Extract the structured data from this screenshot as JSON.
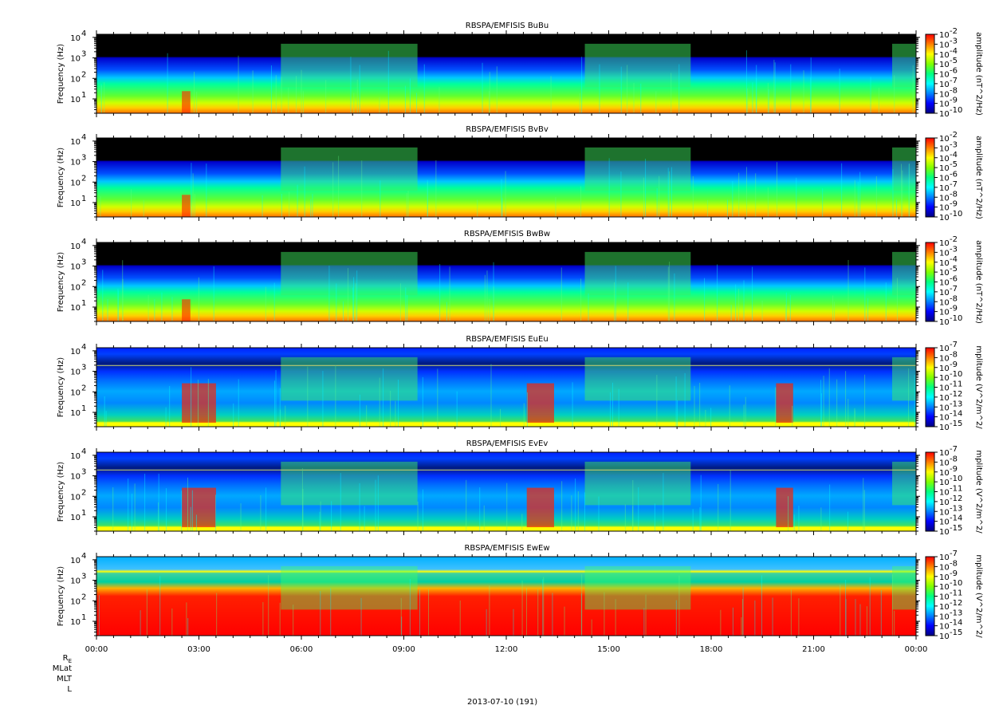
{
  "chart_data": [
    {
      "type": "heatmap",
      "title": "RBSPA/EMFISIS BuBu",
      "ylabel": "Frequency (Hz)",
      "y_scale": "log",
      "y_ticks": [
        "10",
        "10",
        "10",
        "10"
      ],
      "y_tick_exps": [
        "1",
        "2",
        "3",
        "4"
      ],
      "colorbar_label": "amplitude (nT^2/Hz)",
      "colorbar_exps": [
        "-2",
        "-3",
        "-4",
        "-5",
        "-6",
        "-7",
        "-8",
        "-9",
        "-10"
      ],
      "colorbar_scale": "log",
      "colorbar_range": [
        1e-10,
        0.01
      ]
    },
    {
      "type": "heatmap",
      "title": "RBSPA/EMFISIS BvBv",
      "ylabel": "Frequency (Hz)",
      "y_scale": "log",
      "y_ticks": [
        "10",
        "10",
        "10",
        "10"
      ],
      "y_tick_exps": [
        "1",
        "2",
        "3",
        "4"
      ],
      "colorbar_label": "amplitude (nT^2/Hz)",
      "colorbar_exps": [
        "-2",
        "-3",
        "-4",
        "-5",
        "-6",
        "-7",
        "-8",
        "-9",
        "-10"
      ],
      "colorbar_scale": "log",
      "colorbar_range": [
        1e-10,
        0.01
      ]
    },
    {
      "type": "heatmap",
      "title": "RBSPA/EMFISIS BwBw",
      "ylabel": "Frequency (Hz)",
      "y_scale": "log",
      "y_ticks": [
        "10",
        "10",
        "10",
        "10"
      ],
      "y_tick_exps": [
        "1",
        "2",
        "3",
        "4"
      ],
      "colorbar_label": "amplitude (nT^2/Hz)",
      "colorbar_exps": [
        "-2",
        "-3",
        "-4",
        "-5",
        "-6",
        "-7",
        "-8",
        "-9",
        "-10"
      ],
      "colorbar_scale": "log",
      "colorbar_range": [
        1e-10,
        0.01
      ]
    },
    {
      "type": "heatmap",
      "title": "RBSPA/EMFISIS EuEu",
      "ylabel": "Frequency (Hz)",
      "y_scale": "log",
      "y_ticks": [
        "10",
        "10",
        "10",
        "10"
      ],
      "y_tick_exps": [
        "1",
        "2",
        "3",
        "4"
      ],
      "colorbar_label": "mplitude (V^2/m^2/",
      "colorbar_exps": [
        "-7",
        "-8",
        "-9",
        "-10",
        "-11",
        "-12",
        "-13",
        "-14",
        "-15"
      ],
      "colorbar_scale": "log",
      "colorbar_range": [
        1e-15,
        1e-07
      ]
    },
    {
      "type": "heatmap",
      "title": "RBSPA/EMFISIS EvEv",
      "ylabel": "Frequency (Hz)",
      "y_scale": "log",
      "y_ticks": [
        "10",
        "10",
        "10",
        "10"
      ],
      "y_tick_exps": [
        "1",
        "2",
        "3",
        "4"
      ],
      "colorbar_label": "mplitude (V^2/m^2/",
      "colorbar_exps": [
        "-7",
        "-8",
        "-9",
        "-10",
        "-11",
        "-12",
        "-13",
        "-14",
        "-15"
      ],
      "colorbar_scale": "log",
      "colorbar_range": [
        1e-15,
        1e-07
      ]
    },
    {
      "type": "heatmap",
      "title": "RBSPA/EMFISIS EwEw",
      "ylabel": "Frequency (Hz)",
      "y_scale": "log",
      "y_ticks": [
        "10",
        "10",
        "10",
        "10"
      ],
      "y_tick_exps": [
        "1",
        "2",
        "3",
        "4"
      ],
      "colorbar_label": "mplitude (V^2/m^2/",
      "colorbar_exps": [
        "-7",
        "-8",
        "-9",
        "-10",
        "-11",
        "-12",
        "-13",
        "-14",
        "-15"
      ],
      "colorbar_scale": "log",
      "colorbar_range": [
        1e-15,
        1e-07
      ]
    }
  ],
  "x_axis": {
    "ticks": [
      "00:00",
      "03:00",
      "06:00",
      "09:00",
      "12:00",
      "15:00",
      "18:00",
      "21:00",
      "00:00"
    ],
    "range_hours": [
      0,
      24
    ]
  },
  "ephemeris_labels": [
    "R",
    "MLat",
    "MLT",
    "L"
  ],
  "ephemeris_subscript": "E",
  "date_label": "2013-07-10 (191)",
  "colorscale": [
    "#000080",
    "#0000ff",
    "#0080ff",
    "#00ffff",
    "#00ff80",
    "#80ff00",
    "#ffff00",
    "#ff8000",
    "#ff0000"
  ]
}
